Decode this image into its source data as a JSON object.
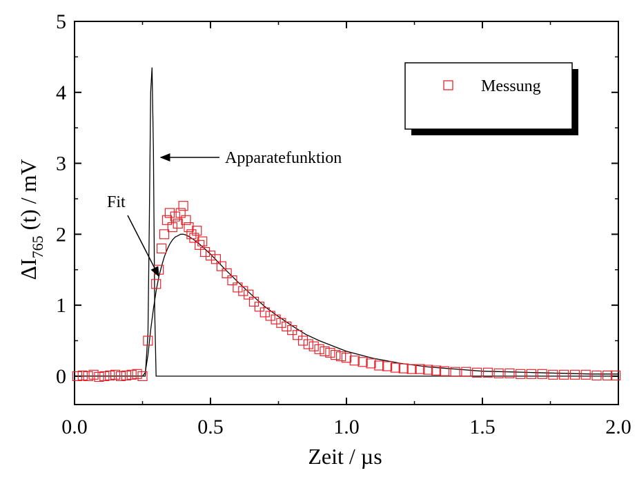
{
  "chart_data": {
    "type": "scatter",
    "xlabel": "Zeit  / µs",
    "ylabel": {
      "base": "ΔI",
      "sub": "765",
      "rest": " (t) / mV"
    },
    "xlim": [
      0,
      2.0
    ],
    "ylim": [
      -0.4,
      5
    ],
    "x_ticks": [
      0.0,
      0.5,
      1.0,
      1.5,
      2.0
    ],
    "x_tick_labels": [
      "0.0",
      "0.5",
      "1.0",
      "1.5",
      "2.0"
    ],
    "y_ticks": [
      0,
      1,
      2,
      3,
      4,
      5
    ],
    "y_tick_labels": [
      "0",
      "1",
      "2",
      "3",
      "4",
      "5"
    ],
    "grid": false,
    "legend": {
      "position": "top-right",
      "entries": [
        {
          "label": "Messung",
          "marker": "open-square",
          "color": "#e8222a"
        }
      ]
    },
    "colors": {
      "measurement": "#e8222a",
      "lines": "#000000"
    },
    "series": [
      {
        "name": "Messung",
        "kind": "scatter",
        "marker": "open-square",
        "x": [
          0.01,
          0.03,
          0.05,
          0.07,
          0.09,
          0.11,
          0.13,
          0.15,
          0.17,
          0.19,
          0.21,
          0.23,
          0.25,
          0.27,
          0.3,
          0.31,
          0.32,
          0.33,
          0.34,
          0.35,
          0.36,
          0.37,
          0.38,
          0.39,
          0.4,
          0.41,
          0.42,
          0.43,
          0.44,
          0.45,
          0.46,
          0.47,
          0.48,
          0.5,
          0.52,
          0.54,
          0.56,
          0.58,
          0.6,
          0.62,
          0.64,
          0.66,
          0.68,
          0.7,
          0.72,
          0.74,
          0.76,
          0.78,
          0.8,
          0.82,
          0.84,
          0.86,
          0.88,
          0.9,
          0.92,
          0.94,
          0.96,
          0.98,
          1.0,
          1.03,
          1.06,
          1.09,
          1.12,
          1.15,
          1.18,
          1.21,
          1.24,
          1.27,
          1.3,
          1.33,
          1.36,
          1.4,
          1.44,
          1.48,
          1.52,
          1.56,
          1.6,
          1.64,
          1.68,
          1.72,
          1.76,
          1.8,
          1.84,
          1.88,
          1.92,
          1.96,
          1.99
        ],
        "values": [
          0.0,
          0.01,
          0.0,
          0.02,
          -0.01,
          0.0,
          0.01,
          0.02,
          0.0,
          0.01,
          0.02,
          0.03,
          0.0,
          0.5,
          1.3,
          1.5,
          1.8,
          2.0,
          2.2,
          2.3,
          2.1,
          2.25,
          2.15,
          2.3,
          2.4,
          2.2,
          2.1,
          2.0,
          1.95,
          2.05,
          1.85,
          1.9,
          1.75,
          1.7,
          1.65,
          1.55,
          1.45,
          1.35,
          1.25,
          1.2,
          1.15,
          1.05,
          0.98,
          0.9,
          0.85,
          0.8,
          0.75,
          0.7,
          0.65,
          0.58,
          0.5,
          0.45,
          0.42,
          0.38,
          0.35,
          0.33,
          0.3,
          0.28,
          0.26,
          0.22,
          0.2,
          0.18,
          0.15,
          0.14,
          0.12,
          0.11,
          0.1,
          0.1,
          0.09,
          0.08,
          0.07,
          0.06,
          0.06,
          0.05,
          0.05,
          0.04,
          0.04,
          0.03,
          0.03,
          0.03,
          0.02,
          0.02,
          0.02,
          0.02,
          0.01,
          0.01,
          0.01
        ]
      },
      {
        "name": "Fit",
        "kind": "line",
        "x": [
          0.0,
          0.25,
          0.26,
          0.27,
          0.28,
          0.29,
          0.3,
          0.31,
          0.32,
          0.33,
          0.34,
          0.35,
          0.36,
          0.37,
          0.38,
          0.39,
          0.4,
          0.41,
          0.42,
          0.44,
          0.46,
          0.48,
          0.5,
          0.55,
          0.6,
          0.65,
          0.7,
          0.75,
          0.8,
          0.85,
          0.9,
          1.0,
          1.1,
          1.2,
          1.3,
          1.4,
          1.5,
          1.6,
          1.7,
          1.8,
          1.9,
          2.0
        ],
        "values": [
          0.0,
          0.0,
          0.05,
          0.3,
          0.65,
          0.95,
          1.2,
          1.4,
          1.55,
          1.68,
          1.78,
          1.86,
          1.92,
          1.96,
          1.98,
          2.0,
          2.0,
          1.99,
          1.97,
          1.92,
          1.86,
          1.79,
          1.72,
          1.52,
          1.33,
          1.15,
          0.98,
          0.84,
          0.71,
          0.59,
          0.5,
          0.35,
          0.25,
          0.18,
          0.13,
          0.1,
          0.07,
          0.06,
          0.05,
          0.04,
          0.03,
          0.03
        ]
      },
      {
        "name": "Apparatefunktion",
        "kind": "line",
        "x": [
          0.0,
          0.26,
          0.27,
          0.275,
          0.28,
          0.285,
          0.29,
          0.295,
          0.3,
          2.0
        ],
        "values": [
          0.0,
          0.0,
          0.6,
          2.2,
          4.0,
          4.35,
          3.2,
          0.9,
          0.0,
          0.0
        ]
      }
    ],
    "annotations": [
      {
        "text": "Apparatefunktion",
        "arrow_to": {
          "x": 0.31,
          "y": 3.0
        }
      },
      {
        "text": "Fit",
        "arrow_to": {
          "x": 0.31,
          "y": 1.4
        }
      }
    ]
  }
}
